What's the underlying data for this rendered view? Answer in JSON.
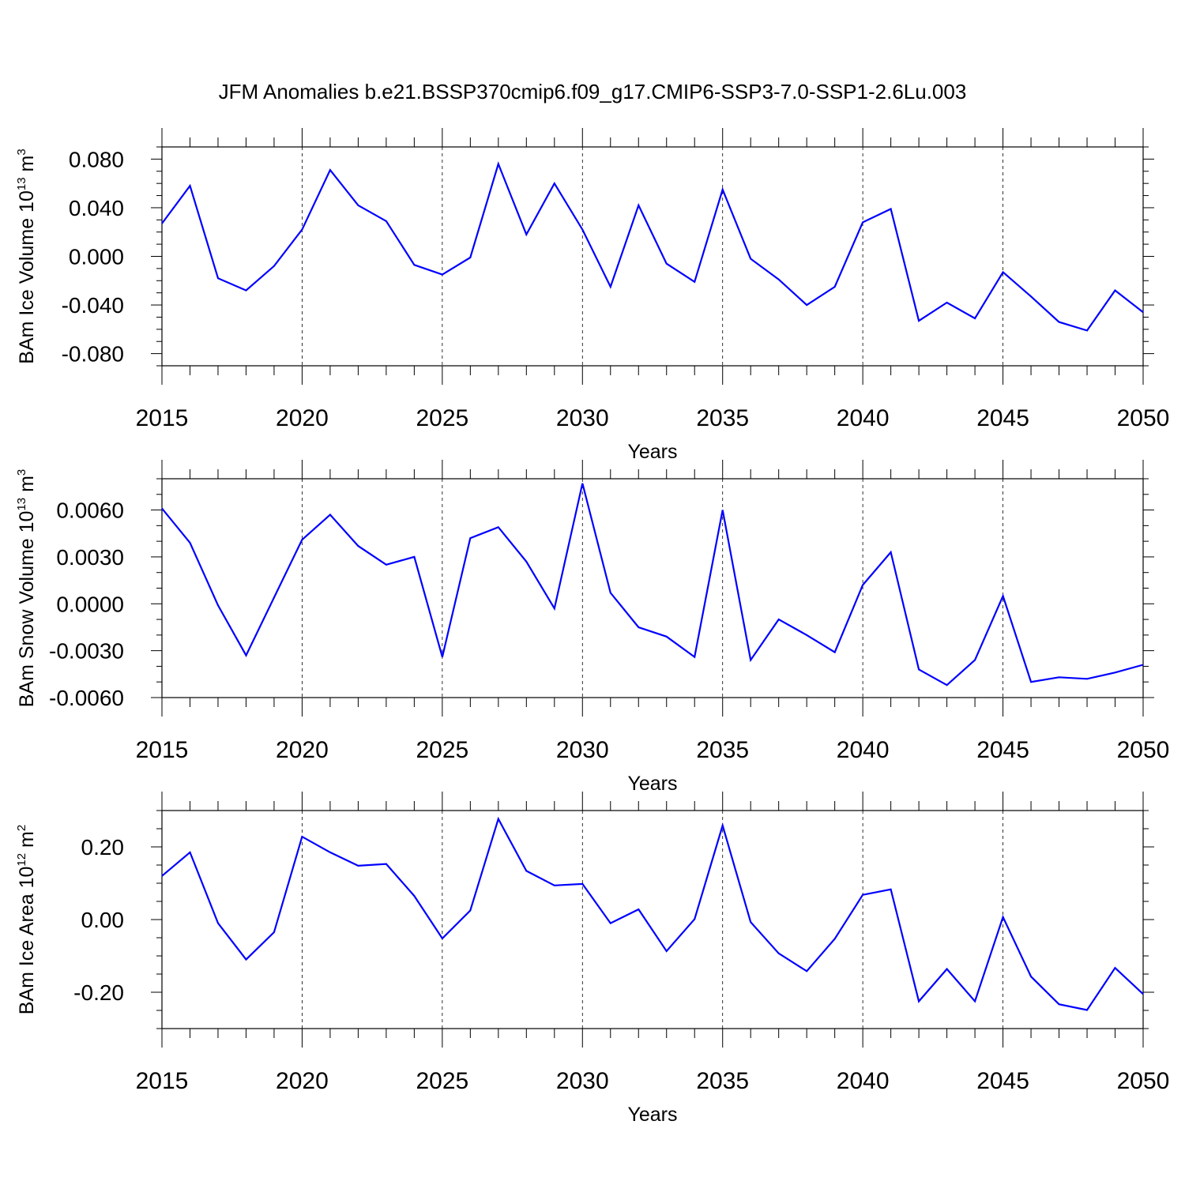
{
  "title": "JFM Anomalies b.e21.BSSP370cmip6.f09_g17.CMIP6-SSP3-7.0-SSP1-2.6Lu.003",
  "line_color": "#0000ff",
  "chart_data": [
    {
      "type": "line",
      "ylabel": "BAm Ice Volume 10",
      "ylabel_sup": "13",
      "ylabel_unit": "m",
      "ylabel_unit_sup": "3",
      "xlabel": "Years",
      "xlim": [
        2015,
        2050
      ],
      "ylim": [
        -0.09,
        0.09
      ],
      "xticks": [
        2015,
        2020,
        2025,
        2030,
        2035,
        2040,
        2045,
        2050
      ],
      "xtick_labels": [
        "2015",
        "2020",
        "2025",
        "2030",
        "2035",
        "2040",
        "2045",
        "2050"
      ],
      "yticks": [
        0.08,
        0.04,
        0.0,
        -0.04,
        -0.08
      ],
      "ytick_labels": [
        "0.080",
        "0.040",
        "0.000",
        "-0.040",
        "-0.080"
      ],
      "yminor_step": 0.01,
      "grid_x": true,
      "x": [
        2015,
        2016,
        2017,
        2018,
        2019,
        2020,
        2021,
        2022,
        2023,
        2024,
        2025,
        2026,
        2027,
        2028,
        2029,
        2030,
        2031,
        2032,
        2033,
        2034,
        2035,
        2036,
        2037,
        2038,
        2039,
        2040,
        2041,
        2042,
        2043,
        2044,
        2045,
        2046,
        2047,
        2048,
        2049,
        2050
      ],
      "y": [
        0.027,
        0.058,
        -0.018,
        -0.028,
        -0.008,
        0.022,
        0.071,
        0.042,
        0.029,
        -0.007,
        -0.015,
        -0.001,
        0.076,
        0.018,
        0.06,
        0.022,
        -0.025,
        0.042,
        -0.006,
        -0.021,
        0.055,
        -0.002,
        -0.019,
        -0.04,
        -0.025,
        0.028,
        0.039,
        -0.053,
        -0.038,
        -0.051,
        -0.013,
        -0.033,
        -0.054,
        -0.061,
        -0.028,
        -0.046
      ]
    },
    {
      "type": "line",
      "ylabel": "BAm Snow Volume 10",
      "ylabel_sup": "13",
      "ylabel_unit": "m",
      "ylabel_unit_sup": "3",
      "xlabel": "Years",
      "xlim": [
        2015,
        2050
      ],
      "ylim": [
        -0.006,
        0.008
      ],
      "xticks": [
        2015,
        2020,
        2025,
        2030,
        2035,
        2040,
        2045,
        2050
      ],
      "xtick_labels": [
        "2015",
        "2020",
        "2025",
        "2030",
        "2035",
        "2040",
        "2045",
        "2050"
      ],
      "yticks": [
        0.006,
        0.003,
        0.0,
        -0.003,
        -0.006
      ],
      "ytick_labels": [
        "0.0060",
        "0.0030",
        "0.0000",
        "-0.0030",
        "-0.0060"
      ],
      "yminor_step": 0.001,
      "grid_x": true,
      "x": [
        2015,
        2016,
        2017,
        2018,
        2019,
        2020,
        2021,
        2022,
        2023,
        2024,
        2025,
        2026,
        2027,
        2028,
        2029,
        2030,
        2031,
        2032,
        2033,
        2034,
        2035,
        2036,
        2037,
        2038,
        2039,
        2040,
        2041,
        2042,
        2043,
        2044,
        2045,
        2046,
        2047,
        2048,
        2049,
        2050
      ],
      "y": [
        0.0061,
        0.0039,
        -0.0001,
        -0.0033,
        0.0004,
        0.0041,
        0.0057,
        0.0037,
        0.0025,
        0.003,
        -0.0034,
        0.0042,
        0.0049,
        0.0027,
        -0.0003,
        0.0077,
        0.0007,
        -0.0015,
        -0.0021,
        -0.0034,
        0.006,
        -0.0036,
        -0.001,
        -0.002,
        -0.0031,
        0.0012,
        0.0033,
        -0.0042,
        -0.0052,
        -0.0036,
        0.0005,
        -0.005,
        -0.0047,
        -0.0048,
        -0.0044,
        -0.0039
      ]
    },
    {
      "type": "line",
      "ylabel": "BAm Ice Area 10",
      "ylabel_sup": "12",
      "ylabel_unit": "m",
      "ylabel_unit_sup": "2",
      "xlabel": "Years",
      "xlim": [
        2015,
        2050
      ],
      "ylim": [
        -0.3,
        0.3
      ],
      "xticks": [
        2015,
        2020,
        2025,
        2030,
        2035,
        2040,
        2045,
        2050
      ],
      "xtick_labels": [
        "2015",
        "2020",
        "2025",
        "2030",
        "2035",
        "2040",
        "2045",
        "2050"
      ],
      "yticks": [
        0.2,
        0.0,
        -0.2
      ],
      "ytick_labels": [
        "0.20",
        "0.00",
        "-0.20"
      ],
      "yminor_step": 0.05,
      "grid_x": true,
      "x": [
        2015,
        2016,
        2017,
        2018,
        2019,
        2020,
        2021,
        2022,
        2023,
        2024,
        2025,
        2026,
        2027,
        2028,
        2029,
        2030,
        2031,
        2032,
        2033,
        2034,
        2035,
        2036,
        2037,
        2038,
        2039,
        2040,
        2041,
        2042,
        2043,
        2044,
        2045,
        2046,
        2047,
        2048,
        2049,
        2050
      ],
      "y": [
        0.12,
        0.185,
        -0.01,
        -0.11,
        -0.035,
        0.228,
        0.185,
        0.148,
        0.153,
        0.065,
        -0.052,
        0.025,
        0.277,
        0.134,
        0.094,
        0.098,
        -0.01,
        0.028,
        -0.087,
        0.001,
        0.259,
        -0.007,
        -0.093,
        -0.142,
        -0.053,
        0.068,
        0.083,
        -0.225,
        -0.136,
        -0.225,
        0.007,
        -0.157,
        -0.233,
        -0.249,
        -0.133,
        -0.205
      ]
    }
  ]
}
